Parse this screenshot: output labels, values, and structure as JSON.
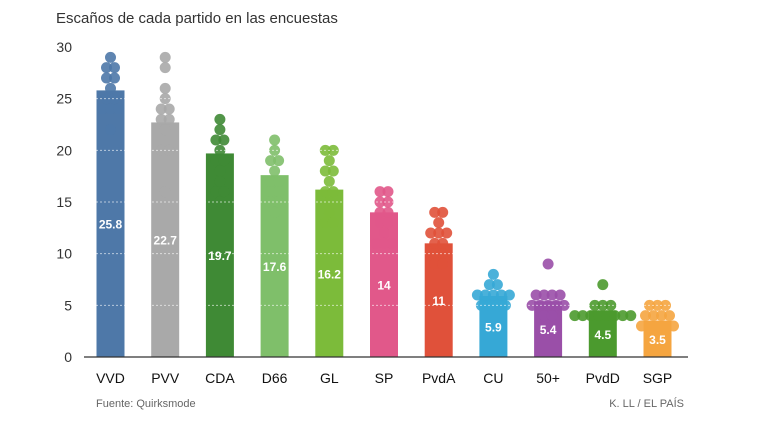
{
  "title": "Escaños de cada partido en las encuestas",
  "footer": {
    "source": "Fuente: Quirksmode",
    "credit": "K. LL / EL PAÍS"
  },
  "chart_data": {
    "type": "bar",
    "title": "Escaños de cada partido en las encuestas",
    "xlabel": "",
    "ylabel": "",
    "ylim": [
      0,
      30
    ],
    "yticks": [
      0,
      5,
      10,
      15,
      20,
      25,
      30
    ],
    "grid": true,
    "categories": [
      "VVD",
      "PVV",
      "CDA",
      "D66",
      "GL",
      "SP",
      "PvdA",
      "CU",
      "50+",
      "PvdD",
      "SGP"
    ],
    "values": [
      25.8,
      22.7,
      19.7,
      17.6,
      16.2,
      14,
      11,
      5.9,
      5.4,
      4.5,
      3.5
    ],
    "value_labels": [
      "25.8",
      "22.7",
      "19.7",
      "17.6",
      "16.2",
      "14",
      "11",
      "5.9",
      "5.4",
      "4.5",
      "3.5"
    ],
    "colors": [
      "#4e78a8",
      "#a9a9a9",
      "#3f8a35",
      "#7fbf6a",
      "#7cbb3a",
      "#e1588a",
      "#e0513a",
      "#36a8d6",
      "#9a4fa8",
      "#4b9a2e",
      "#f5a540"
    ],
    "poll_points": [
      [
        29,
        28,
        28,
        27,
        27,
        26,
        25,
        25,
        24,
        24,
        24,
        22
      ],
      [
        29,
        28,
        26,
        25,
        24,
        24,
        23,
        23,
        22,
        20,
        20,
        16
      ],
      [
        23,
        22,
        21,
        21,
        20,
        19,
        19,
        18,
        17,
        16,
        16,
        15
      ],
      [
        21,
        20,
        19,
        19,
        18,
        17,
        17,
        16,
        16,
        15,
        15,
        14
      ],
      [
        20,
        20,
        19,
        18,
        18,
        17,
        16,
        16,
        15,
        14,
        13,
        13
      ],
      [
        16,
        16,
        15,
        15,
        14,
        14,
        13,
        13,
        12,
        11,
        11,
        11
      ],
      [
        14,
        14,
        13,
        12,
        12,
        12,
        11,
        11,
        10,
        10,
        9,
        9
      ],
      [
        8,
        7,
        7,
        6,
        6,
        6,
        6,
        6,
        5,
        5,
        5,
        5
      ],
      [
        9,
        6,
        6,
        6,
        6,
        5,
        5,
        5,
        5,
        5,
        4,
        4
      ],
      [
        7,
        5,
        5,
        5,
        4,
        4,
        4,
        4,
        4,
        4,
        4,
        4
      ],
      [
        5,
        5,
        5,
        4,
        4,
        4,
        4,
        3,
        3,
        3,
        3,
        3
      ]
    ]
  }
}
